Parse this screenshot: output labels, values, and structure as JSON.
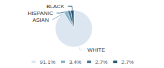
{
  "chart_data": {
    "type": "pie",
    "categories": [
      "WHITE",
      "ASIAN",
      "HISPANIC",
      "BLACK"
    ],
    "values": [
      91.1,
      3.4,
      2.7,
      2.7
    ],
    "value_labels": [
      "91.1%",
      "3.4%",
      "2.7%",
      "2.7%"
    ],
    "colors": [
      "#dce6f0",
      "#8cb4c8",
      "#4a7a96",
      "#2d5a72"
    ],
    "legend": "bottom"
  }
}
